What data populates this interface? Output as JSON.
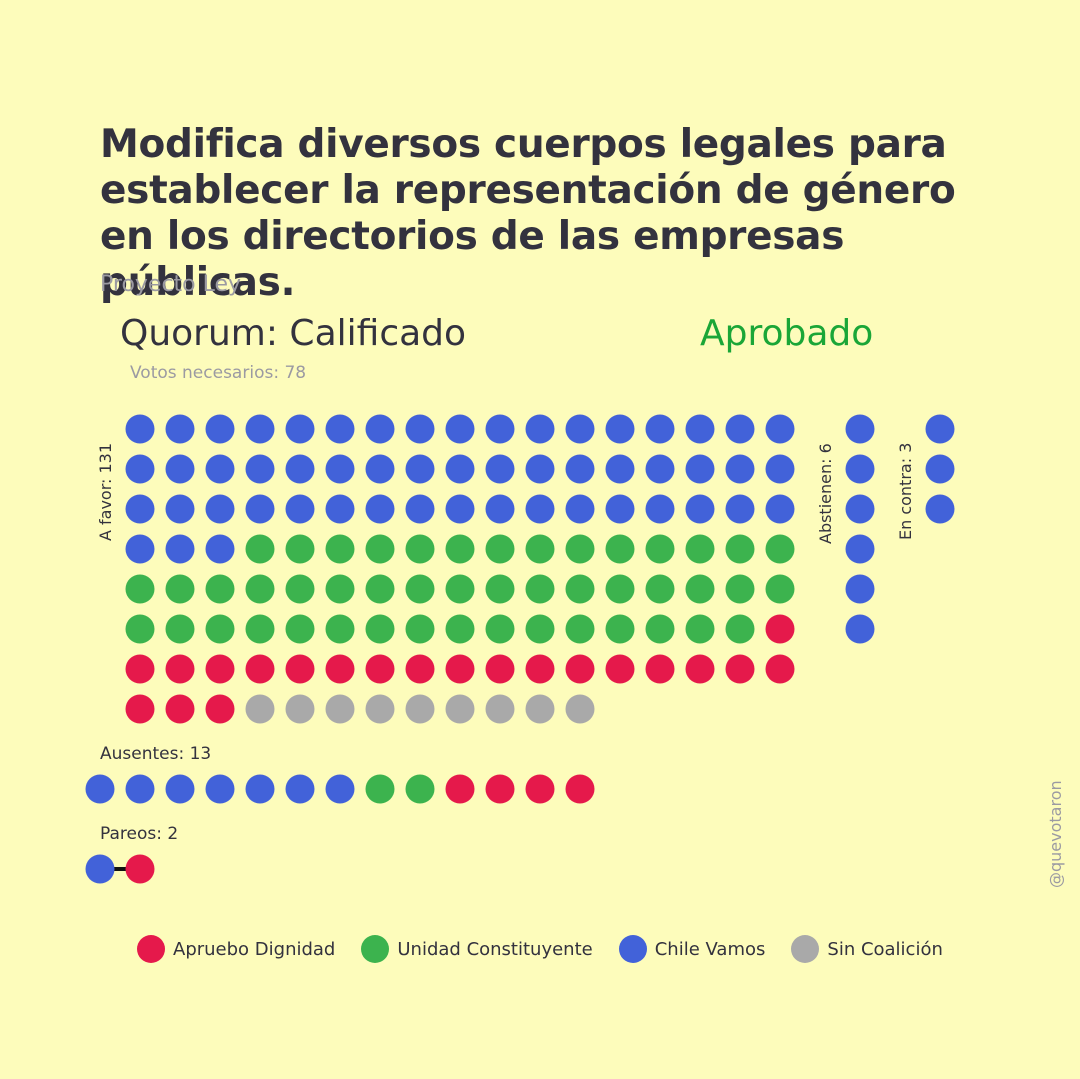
{
  "title": "Modifica diversos cuerpos legales para establecer la representación de género en los directorios de las empresas públicas.",
  "subtitle": "Proyecto Ley",
  "quorum": "Quorum: Calificado",
  "result": "Aprobado",
  "votes_needed": "Votos necesarios: 78",
  "handle": "@quevotaron",
  "colors": {
    "apruebo_dignidad": "#e5194b",
    "unidad_constituyente": "#3cb34e",
    "chile_vamos": "#4262d9",
    "sin_coalicion": "#a9a9a9",
    "background": "#fdfcbb",
    "approved": "#1aa637"
  },
  "chart_data": {
    "type": "waffle",
    "groups": [
      {
        "label": "A favor: 131",
        "counts": {
          "chile_vamos": 54,
          "unidad_constituyente": 47,
          "apruebo_dignidad": 21,
          "sin_coalicion": 9
        }
      },
      {
        "label": "Abstienen: 6",
        "counts": {
          "chile_vamos": 6
        }
      },
      {
        "label": "En contra: 3",
        "counts": {
          "chile_vamos": 3
        }
      },
      {
        "label": "Ausentes: 13",
        "counts": {
          "chile_vamos": 7,
          "unidad_constituyente": 2,
          "apruebo_dignidad": 4
        }
      },
      {
        "label": "Pareos: 2",
        "pairs": [
          [
            "chile_vamos",
            "apruebo_dignidad"
          ]
        ]
      }
    ],
    "legend": [
      {
        "key": "apruebo_dignidad",
        "label": "Apruebo Dignidad"
      },
      {
        "key": "unidad_constituyente",
        "label": "Unidad Constituyente"
      },
      {
        "key": "chile_vamos",
        "label": "Chile Vamos"
      },
      {
        "key": "sin_coalicion",
        "label": "Sin Coalición"
      }
    ]
  }
}
